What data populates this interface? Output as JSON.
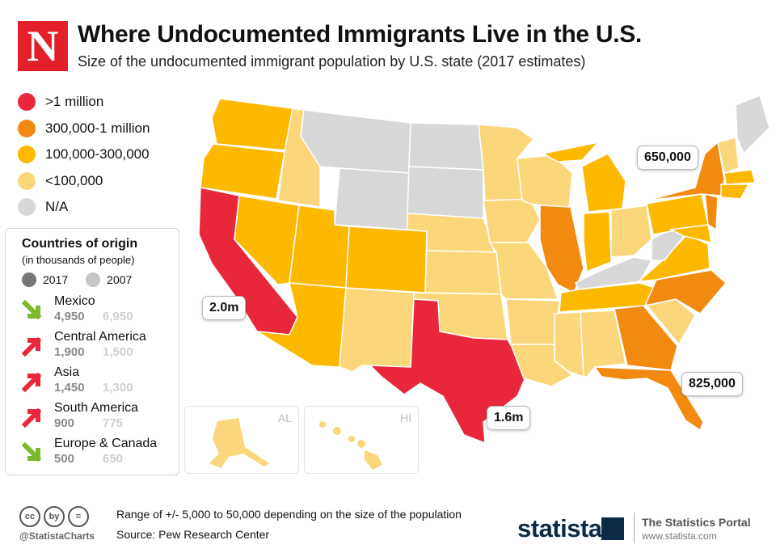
{
  "brand": {
    "logo_letter": "N"
  },
  "title": "Where Undocumented Immigrants Live in the U.S.",
  "subtitle": "Size of the undocumented immigrant population by U.S. state (2017 estimates)",
  "legend": [
    {
      "label": ">1 million",
      "color": "#e8283a"
    },
    {
      "label": "300,000-1 million",
      "color": "#f28a10"
    },
    {
      "label": "100,000-300,000",
      "color": "#fdb800"
    },
    {
      "label": "<100,000",
      "color": "#fcd67a"
    },
    {
      "label": "N/A",
      "color": "#d8d8d8"
    }
  ],
  "origins": {
    "title": "Countries of origin",
    "subtitle": "(in thousands of people)",
    "year_a": "2017",
    "year_b": "2007",
    "year_a_color": "#777777",
    "year_b_color": "#c6c6c6",
    "rows": [
      {
        "name": "Mexico",
        "v2017": "4,950",
        "v2007": "6,950",
        "trend": "down",
        "arrow_color": "#7db82a"
      },
      {
        "name": "Central America",
        "v2017": "1,900",
        "v2007": "1,500",
        "trend": "up",
        "arrow_color": "#e8283a"
      },
      {
        "name": "Asia",
        "v2017": "1,450",
        "v2007": "1,300",
        "trend": "up",
        "arrow_color": "#e8283a"
      },
      {
        "name": "South America",
        "v2017": "900",
        "v2007": "775",
        "trend": "up",
        "arrow_color": "#e8283a"
      },
      {
        "name": "Europe & Canada",
        "v2017": "500",
        "v2007": "650",
        "trend": "down",
        "arrow_color": "#7db82a"
      }
    ]
  },
  "map": {
    "callouts": {
      "ny": "650,000",
      "ca": "2.0m",
      "fl": "825,000",
      "tx": "1.6m"
    },
    "insets": {
      "alaska": "AL",
      "hawaii": "HI"
    }
  },
  "footer": {
    "license_icons": [
      "cc",
      "by",
      "="
    ],
    "handle": "@StatistaCharts",
    "note": "Range of +/- 5,000 to 50,000 depending on the size of the population",
    "source": "Source: Pew Research Center",
    "statista": "statista",
    "portal": "The Statistics Portal",
    "portal_url": "www.statista.com"
  }
}
